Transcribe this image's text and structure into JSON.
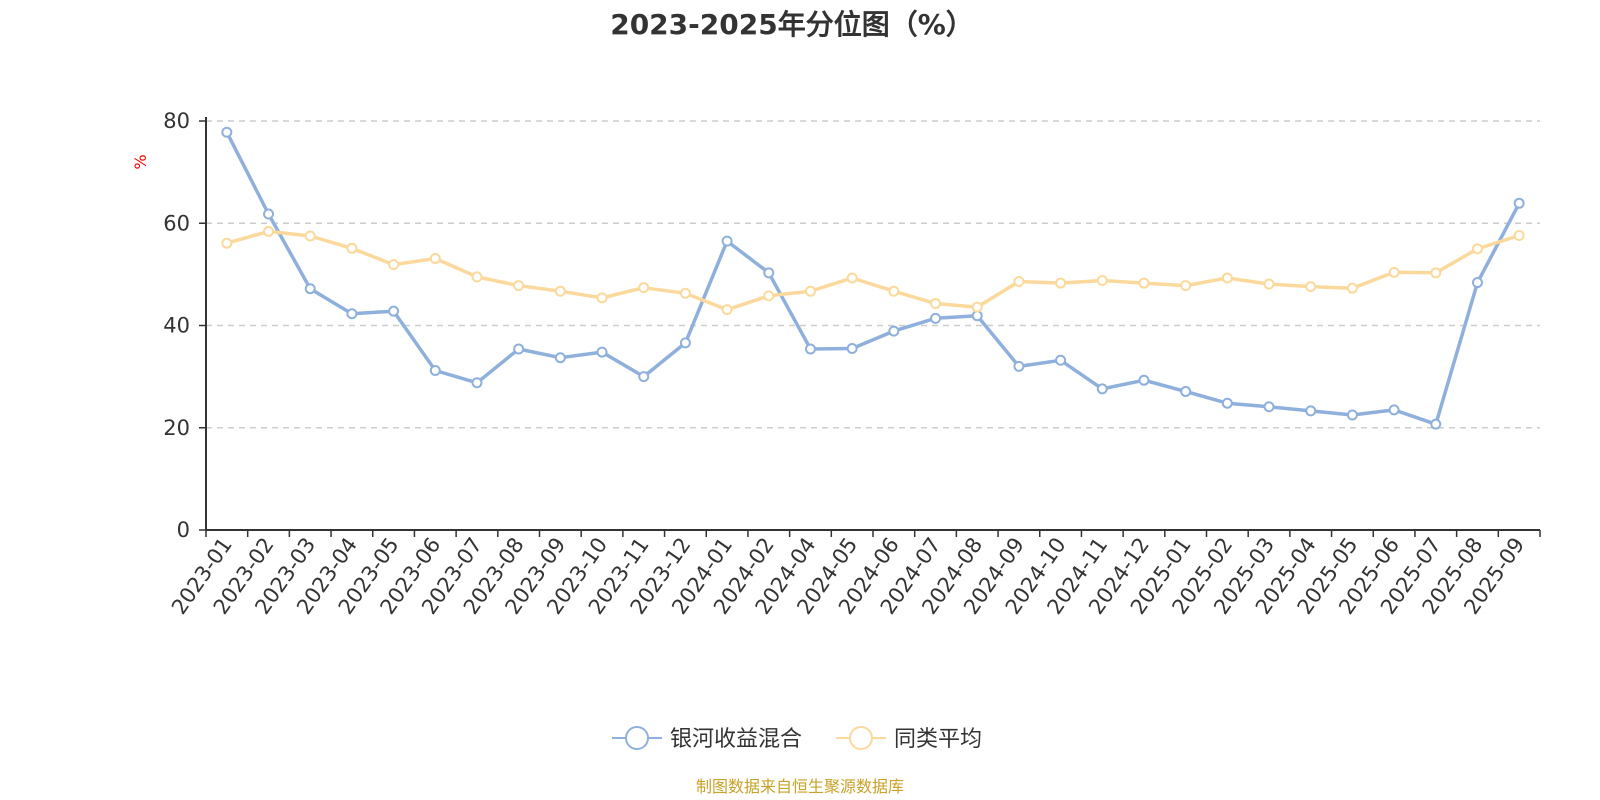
{
  "chart_data": {
    "type": "line",
    "title": "2023-2025年分位图（%）",
    "ylabel": "%",
    "ylim": [
      0,
      80
    ],
    "yticks": [
      0,
      20,
      40,
      60,
      80
    ],
    "grid": true,
    "legend_position": "bottom",
    "categories": [
      "2023-01",
      "2023-02",
      "2023-03",
      "2023-04",
      "2023-05",
      "2023-06",
      "2023-07",
      "2023-08",
      "2023-09",
      "2023-10",
      "2023-11",
      "2023-12",
      "2024-01",
      "2024-02",
      "2024-04",
      "2024-05",
      "2024-06",
      "2024-07",
      "2024-08",
      "2024-09",
      "2024-10",
      "2024-11",
      "2024-12",
      "2025-01",
      "2025-02",
      "2025-03",
      "2025-04",
      "2025-05",
      "2025-06",
      "2025-07",
      "2025-08",
      "2025-09"
    ],
    "series": [
      {
        "name": "银河收益混合",
        "color": "#8fb0dc",
        "values": [
          77.8,
          61.8,
          47.2,
          42.3,
          42.8,
          31.2,
          28.8,
          35.4,
          33.7,
          34.8,
          30.0,
          36.6,
          56.5,
          50.3,
          35.4,
          35.5,
          38.9,
          41.4,
          41.9,
          32.0,
          33.2,
          27.6,
          29.3,
          27.1,
          24.8,
          24.1,
          23.3,
          22.5,
          23.5,
          20.7,
          48.4,
          63.9
        ]
      },
      {
        "name": "同类平均",
        "color": "#fbd99c",
        "values": [
          56.1,
          58.4,
          57.5,
          55.1,
          51.9,
          53.1,
          49.5,
          47.8,
          46.7,
          45.4,
          47.4,
          46.3,
          43.1,
          45.8,
          46.7,
          49.3,
          46.7,
          44.3,
          43.6,
          48.6,
          48.3,
          48.8,
          48.3,
          47.8,
          49.3,
          48.1,
          47.6,
          47.3,
          50.4,
          50.3,
          55.0,
          57.6
        ]
      }
    ]
  },
  "source_text": "制图数据来自恒生聚源数据库",
  "colors": {
    "unit_label": "#ff0000",
    "source_text": "#c9a227",
    "axis": "#333333",
    "grid": "#cccccc"
  }
}
